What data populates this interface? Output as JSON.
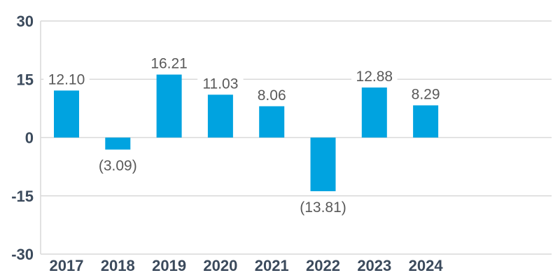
{
  "chart_data": {
    "type": "bar",
    "categories": [
      "2017",
      "2018",
      "2019",
      "2020",
      "2021",
      "2022",
      "2023",
      "2024"
    ],
    "values": [
      12.1,
      -3.09,
      16.21,
      11.03,
      8.06,
      -13.81,
      12.88,
      8.29
    ],
    "data_labels": [
      "12.10",
      "(3.09)",
      "16.21",
      "11.03",
      "8.06",
      "(13.81)",
      "12.88",
      "8.29"
    ],
    "yticks": [
      30,
      15,
      0,
      -15,
      -30
    ],
    "ytick_labels": [
      "30",
      "15",
      "0",
      "-15",
      "-30"
    ],
    "ylim": [
      -30,
      30
    ],
    "title": "",
    "xlabel": "",
    "ylabel": "",
    "grid": true,
    "legend": "none",
    "colors": {
      "bar": "#00A3E0",
      "axis_text": "#3B4A5C",
      "data_label": "#595959",
      "grid": "#D9D9D9"
    }
  }
}
